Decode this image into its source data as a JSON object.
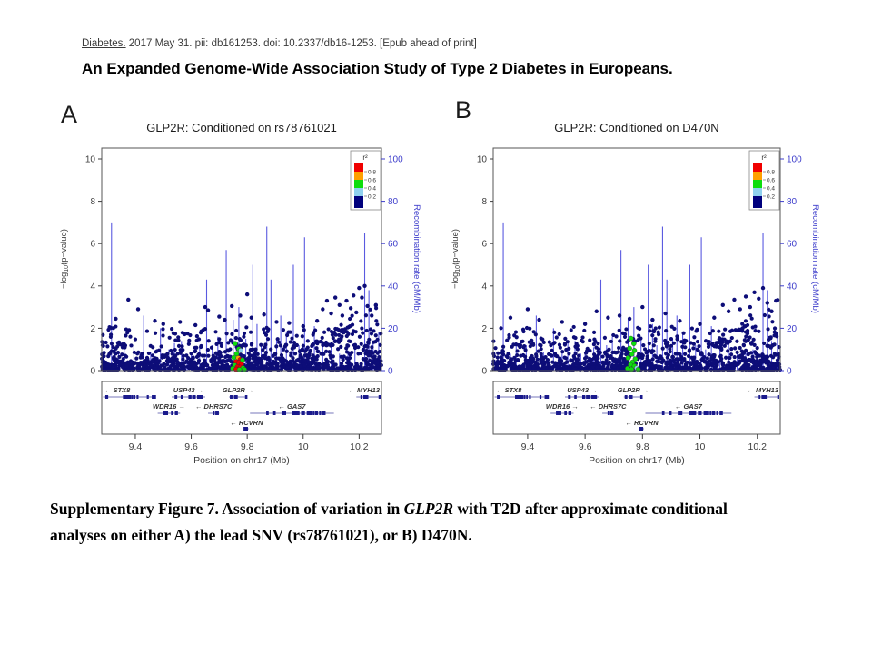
{
  "citation": {
    "journal": "Diabetes.",
    "rest": " 2017 May 31. pii: db161253. doi: 10.2337/db16-1253. [Epub ahead of print]"
  },
  "paper_title": "An Expanded Genome-Wide Association Study of Type 2 Diabetes in Europeans.",
  "caption": {
    "line1_pre": "Supplementary Figure 7. Association of variation in ",
    "line1_gene": "GLP2R",
    "line1_post": " with T2D after approximate conditional",
    "line2": "analyses on either A) the lead SNV (rs78761021), or B) D470N."
  },
  "colors": {
    "axis_blue": "#3d3dcb",
    "spike_blue": "#5a5ae0",
    "point_navy": "#0d0d78",
    "gene_navy": "#1a1a8c",
    "gene_line": "#7777bb",
    "axis_text": "#3d3d3d",
    "box_stroke": "#555555",
    "r2_red": "#f00000",
    "r2_orange": "#ffa000",
    "r2_green": "#0ddd0d",
    "r2_lightblue": "#8fd0ee",
    "r2_navy": "#00007d"
  },
  "chart_data": [
    {
      "type": "scatter",
      "panel_label": "A",
      "title": "GLP2R: Conditioned on rs78761021",
      "xlabel": "Position on chr17 (Mb)",
      "ylabel_left": "-log10(p-value)",
      "ylabel_right": "Recombination rate (cM/Mb)",
      "xlim": [
        9.28,
        10.28
      ],
      "ylim_left": [
        0,
        10
      ],
      "ylim_right": [
        0,
        100
      ],
      "xticks": [
        "9.4",
        "9.6",
        "9.8",
        "10",
        "10.2"
      ],
      "xtick_values": [
        9.4,
        9.6,
        9.8,
        10.0,
        10.2
      ],
      "yticks_left": [
        0,
        2,
        4,
        6,
        8,
        10
      ],
      "yticks_right": [
        0,
        20,
        40,
        60,
        80,
        100
      ],
      "legend": {
        "title": "r²",
        "colors": [
          "#f00000",
          "#ffa000",
          "#0ddd0d",
          "#8fd0ee",
          "#00007d"
        ],
        "labels": [
          "0.8",
          "0.6",
          "0.4",
          "0.2"
        ]
      },
      "recomb_spikes": [
        [
          9.315,
          70
        ],
        [
          9.34,
          8
        ],
        [
          9.36,
          12
        ],
        [
          9.395,
          12
        ],
        [
          9.43,
          26
        ],
        [
          9.455,
          9
        ],
        [
          9.49,
          20
        ],
        [
          9.52,
          10
        ],
        [
          9.54,
          13
        ],
        [
          9.565,
          14
        ],
        [
          9.585,
          8
        ],
        [
          9.6,
          9
        ],
        [
          9.63,
          11
        ],
        [
          9.655,
          43
        ],
        [
          9.675,
          12
        ],
        [
          9.695,
          16
        ],
        [
          9.725,
          57
        ],
        [
          9.75,
          24
        ],
        [
          9.77,
          30
        ],
        [
          9.795,
          15
        ],
        [
          9.82,
          50
        ],
        [
          9.835,
          22
        ],
        [
          9.85,
          12
        ],
        [
          9.87,
          68
        ],
        [
          9.885,
          43
        ],
        [
          9.905,
          15
        ],
        [
          9.92,
          26
        ],
        [
          9.94,
          18
        ],
        [
          9.965,
          50
        ],
        [
          9.985,
          12
        ],
        [
          10.005,
          63
        ],
        [
          10.02,
          10
        ],
        [
          10.04,
          21
        ],
        [
          10.07,
          12
        ],
        [
          10.1,
          13
        ],
        [
          10.13,
          8
        ],
        [
          10.16,
          9
        ],
        [
          10.185,
          10
        ],
        [
          10.22,
          65
        ],
        [
          10.235,
          38
        ],
        [
          10.25,
          14
        ],
        [
          10.27,
          18
        ]
      ],
      "scatter_params": {
        "seed": 7,
        "n_base": 1050,
        "y_mean": 0.45,
        "y_cap": 2.1,
        "n_mid": 80,
        "right_cloud_n": 55
      },
      "outlier_points": [
        [
          9.33,
          2.45
        ],
        [
          9.375,
          3.35
        ],
        [
          9.41,
          2.9
        ],
        [
          9.47,
          2.35
        ],
        [
          9.5,
          2.2
        ],
        [
          9.56,
          2.3
        ],
        [
          9.615,
          2.15
        ],
        [
          9.65,
          3.0
        ],
        [
          9.66,
          2.85
        ],
        [
          9.7,
          2.55
        ],
        [
          9.72,
          2.4
        ],
        [
          9.745,
          3.05
        ],
        [
          9.775,
          2.6
        ],
        [
          9.8,
          3.6
        ],
        [
          9.815,
          2.5
        ],
        [
          9.86,
          2.65
        ],
        [
          9.905,
          2.3
        ],
        [
          9.95,
          2.25
        ],
        [
          10.0,
          2.1
        ],
        [
          10.05,
          2.35
        ],
        [
          10.07,
          2.9
        ],
        [
          10.085,
          3.3
        ],
        [
          10.1,
          2.7
        ],
        [
          10.115,
          3.45
        ],
        [
          10.13,
          3.1
        ],
        [
          10.14,
          2.6
        ],
        [
          10.155,
          3.3
        ],
        [
          10.17,
          2.95
        ],
        [
          10.18,
          3.55
        ],
        [
          10.19,
          2.75
        ],
        [
          10.2,
          3.9
        ],
        [
          10.21,
          3.45
        ],
        [
          10.22,
          4.0
        ],
        [
          10.23,
          3.05
        ],
        [
          10.245,
          2.6
        ],
        [
          10.26,
          3.1
        ]
      ],
      "highlight_points": [
        [
          9.757,
          1.28,
          "r2_green"
        ],
        [
          9.77,
          1.02,
          "r2_green"
        ],
        [
          9.777,
          0.95,
          "r2_lightblue"
        ],
        [
          9.762,
          0.8,
          "r2_green"
        ],
        [
          9.752,
          0.62,
          "r2_green"
        ],
        [
          9.768,
          0.6,
          "r2_orange"
        ],
        [
          9.775,
          0.52,
          "r2_red"
        ],
        [
          9.783,
          0.5,
          "r2_green"
        ],
        [
          9.76,
          0.42,
          "r2_red"
        ],
        [
          9.77,
          0.38,
          "r2_red"
        ],
        [
          9.78,
          0.3,
          "r2_red"
        ],
        [
          9.755,
          0.25,
          "r2_green"
        ],
        [
          9.765,
          0.18,
          "r2_red"
        ],
        [
          9.775,
          0.15,
          "r2_red"
        ],
        [
          9.785,
          0.12,
          "r2_green"
        ],
        [
          9.748,
          0.1,
          "r2_green"
        ],
        [
          9.76,
          0.06,
          "r2_red"
        ],
        [
          9.772,
          0.04,
          "r2_green"
        ],
        [
          9.79,
          0.05,
          "r2_green"
        ]
      ],
      "genes": [
        {
          "name": "STX8",
          "label": "← STX8",
          "row": 0,
          "start": 9.285,
          "end": 9.47
        },
        {
          "name": "USP43",
          "label": "USP43 →",
          "row": 0,
          "start": 9.53,
          "end": 9.65
        },
        {
          "name": "GLP2R",
          "label": "GLP2R →",
          "row": 0,
          "start": 9.735,
          "end": 9.8
        },
        {
          "name": "MYH13",
          "label": "← MYH13",
          "row": 0,
          "start": 10.19,
          "end": 10.275
        },
        {
          "name": "WDR16",
          "label": "WDR16 →",
          "row": 1,
          "start": 9.48,
          "end": 9.56
        },
        {
          "name": "DHRS7C",
          "label": "← DHRS7C",
          "row": 1,
          "start": 9.66,
          "end": 9.7
        },
        {
          "name": "GAS7",
          "label": "← GAS7",
          "row": 1,
          "start": 9.81,
          "end": 10.11
        },
        {
          "name": "RCVRN",
          "label": "← RCVRN",
          "row": 2,
          "start": 9.79,
          "end": 9.805
        }
      ]
    },
    {
      "type": "scatter",
      "panel_label": "B",
      "title": "GLP2R: Conditioned on D470N",
      "xlabel": "Position on chr17 (Mb)",
      "ylabel_left": "-log10(p-value)",
      "ylabel_right": "Recombination rate (cM/Mb)",
      "xlim": [
        9.28,
        10.28
      ],
      "ylim_left": [
        0,
        10
      ],
      "ylim_right": [
        0,
        100
      ],
      "xticks": [
        "9.4",
        "9.6",
        "9.8",
        "10",
        "10.2"
      ],
      "xtick_values": [
        9.4,
        9.6,
        9.8,
        10.0,
        10.2
      ],
      "yticks_left": [
        0,
        2,
        4,
        6,
        8,
        10
      ],
      "yticks_right": [
        0,
        20,
        40,
        60,
        80,
        100
      ],
      "legend": {
        "title": "r²",
        "colors": [
          "#f00000",
          "#ffa000",
          "#0ddd0d",
          "#8fd0ee",
          "#00007d"
        ],
        "labels": [
          "0.8",
          "0.6",
          "0.4",
          "0.2"
        ]
      },
      "recomb_spikes": [
        [
          9.315,
          70
        ],
        [
          9.34,
          8
        ],
        [
          9.36,
          12
        ],
        [
          9.395,
          12
        ],
        [
          9.43,
          26
        ],
        [
          9.455,
          9
        ],
        [
          9.49,
          20
        ],
        [
          9.52,
          10
        ],
        [
          9.54,
          13
        ],
        [
          9.565,
          14
        ],
        [
          9.585,
          8
        ],
        [
          9.6,
          9
        ],
        [
          9.63,
          11
        ],
        [
          9.655,
          43
        ],
        [
          9.675,
          12
        ],
        [
          9.695,
          16
        ],
        [
          9.725,
          57
        ],
        [
          9.75,
          24
        ],
        [
          9.77,
          30
        ],
        [
          9.795,
          15
        ],
        [
          9.82,
          50
        ],
        [
          9.835,
          22
        ],
        [
          9.85,
          12
        ],
        [
          9.87,
          68
        ],
        [
          9.885,
          43
        ],
        [
          9.905,
          15
        ],
        [
          9.92,
          26
        ],
        [
          9.94,
          18
        ],
        [
          9.965,
          50
        ],
        [
          9.985,
          12
        ],
        [
          10.005,
          63
        ],
        [
          10.02,
          10
        ],
        [
          10.04,
          21
        ],
        [
          10.07,
          12
        ],
        [
          10.1,
          13
        ],
        [
          10.13,
          8
        ],
        [
          10.16,
          9
        ],
        [
          10.185,
          10
        ],
        [
          10.22,
          65
        ],
        [
          10.235,
          38
        ],
        [
          10.25,
          14
        ],
        [
          10.27,
          18
        ]
      ],
      "scatter_params": {
        "seed": 13,
        "n_base": 1050,
        "y_mean": 0.45,
        "y_cap": 2.1,
        "n_mid": 80,
        "right_cloud_n": 55
      },
      "outlier_points": [
        [
          9.34,
          2.5
        ],
        [
          9.4,
          2.9
        ],
        [
          9.44,
          2.4
        ],
        [
          9.52,
          2.3
        ],
        [
          9.6,
          2.2
        ],
        [
          9.64,
          2.8
        ],
        [
          9.68,
          2.5
        ],
        [
          9.72,
          2.6
        ],
        [
          9.755,
          2.45
        ],
        [
          9.8,
          3.0
        ],
        [
          9.835,
          2.4
        ],
        [
          9.88,
          2.7
        ],
        [
          9.93,
          2.35
        ],
        [
          10.0,
          2.2
        ],
        [
          10.05,
          2.5
        ],
        [
          10.08,
          3.1
        ],
        [
          10.1,
          2.8
        ],
        [
          10.12,
          3.35
        ],
        [
          10.14,
          2.9
        ],
        [
          10.16,
          3.5
        ],
        [
          10.175,
          3.0
        ],
        [
          10.19,
          3.7
        ],
        [
          10.205,
          3.4
        ],
        [
          10.22,
          3.9
        ],
        [
          10.235,
          3.2
        ],
        [
          10.25,
          2.8
        ],
        [
          10.265,
          3.3
        ]
      ],
      "highlight_points": [
        [
          9.76,
          1.52,
          "r2_green"
        ],
        [
          9.77,
          1.28,
          "r2_green"
        ],
        [
          9.755,
          1.05,
          "r2_green"
        ],
        [
          9.772,
          0.95,
          "r2_green"
        ],
        [
          9.763,
          0.78,
          "r2_green"
        ],
        [
          9.75,
          0.6,
          "r2_green"
        ],
        [
          9.775,
          0.55,
          "r2_green"
        ],
        [
          9.765,
          0.4,
          "r2_green"
        ],
        [
          9.758,
          0.28,
          "r2_green"
        ],
        [
          9.772,
          0.22,
          "r2_green"
        ],
        [
          9.78,
          0.12,
          "r2_lightblue"
        ],
        [
          9.748,
          0.1,
          "r2_green"
        ],
        [
          9.762,
          0.06,
          "r2_green"
        ],
        [
          9.785,
          0.05,
          "r2_green"
        ]
      ],
      "genes": [
        {
          "name": "STX8",
          "label": "← STX8",
          "row": 0,
          "start": 9.285,
          "end": 9.47
        },
        {
          "name": "USP43",
          "label": "USP43 →",
          "row": 0,
          "start": 9.53,
          "end": 9.65
        },
        {
          "name": "GLP2R",
          "label": "GLP2R →",
          "row": 0,
          "start": 9.735,
          "end": 9.8
        },
        {
          "name": "MYH13",
          "label": "← MYH13",
          "row": 0,
          "start": 10.19,
          "end": 10.275
        },
        {
          "name": "WDR16",
          "label": "WDR16 →",
          "row": 1,
          "start": 9.48,
          "end": 9.56
        },
        {
          "name": "DHRS7C",
          "label": "← DHRS7C",
          "row": 1,
          "start": 9.66,
          "end": 9.7
        },
        {
          "name": "GAS7",
          "label": "← GAS7",
          "row": 1,
          "start": 9.81,
          "end": 10.11
        },
        {
          "name": "RCVRN",
          "label": "← RCVRN",
          "row": 2,
          "start": 9.79,
          "end": 9.805
        }
      ]
    }
  ]
}
